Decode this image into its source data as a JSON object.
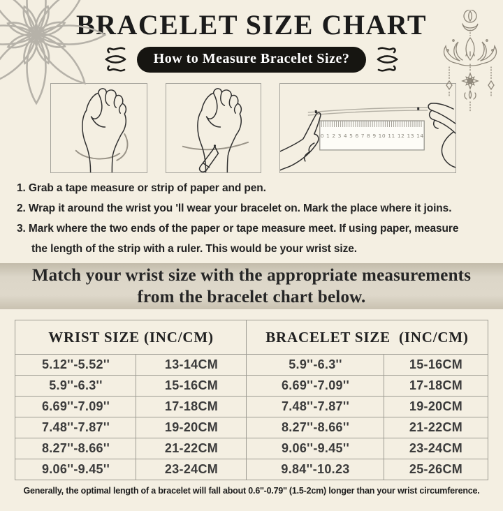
{
  "colors": {
    "background": "#f4efe2",
    "banner_bg": "#d8d2c3",
    "pill_bg": "#161511",
    "pill_text": "#ffffff",
    "text": "#1e1e1e",
    "table_border": "#9e9c93",
    "line_art": "#8d8679"
  },
  "header": {
    "title": "BRACELET SIZE CHART",
    "subtitle": "How to Measure Bracelet Size?"
  },
  "illustration_labels": {
    "panel1": "hand-with-tape-around-wrist",
    "panel2": "hand-marking-wrist-with-pen",
    "panel3": "measuring-strip-with-ruler",
    "ruler_numbers": "0 1 2 3 4 5 6 7 8 9 10 11 12 13 14"
  },
  "instructions": [
    {
      "text": "1. Grab a tape measure or strip of paper and pen.",
      "indent": false
    },
    {
      "text": "2. Wrap it around the wrist you 'll wear your bracelet on. Mark the place where it joins.",
      "indent": false
    },
    {
      "text": "3. Mark where the two ends of the paper or tape measure meet. If using paper, measure",
      "indent": false
    },
    {
      "text": "the length of the strip with a ruler. This would be your wrist size.",
      "indent": true
    }
  ],
  "banner": {
    "line1": "Match your wrist size with the appropriate measurements",
    "line2": "from the bracelet chart below."
  },
  "size_table": {
    "headers": [
      {
        "label": "WRIST SIZE (INC/CM)",
        "span": 2
      },
      {
        "label": "BRACELET SIZE  (INC/CM)",
        "span": 2
      }
    ],
    "rows": [
      [
        "5.12''-5.52''",
        "13-14CM",
        "5.9''-6.3''",
        "15-16CM"
      ],
      [
        "5.9''-6.3''",
        "15-16CM",
        "6.69''-7.09''",
        "17-18CM"
      ],
      [
        "6.69''-7.09''",
        "17-18CM",
        "7.48''-7.87''",
        "19-20CM"
      ],
      [
        "7.48''-7.87''",
        "19-20CM",
        "8.27''-8.66''",
        "21-22CM"
      ],
      [
        "8.27''-8.66''",
        "21-22CM",
        "9.06''-9.45''",
        "23-24CM"
      ],
      [
        "9.06''-9.45''",
        "23-24CM",
        "9.84''-10.23",
        "25-26CM"
      ]
    ]
  },
  "footer": {
    "note": "Generally, the optimal length of a bracelet will fall about 0.6''-0.79'' (1.5-2cm) longer than your wrist circumference."
  }
}
